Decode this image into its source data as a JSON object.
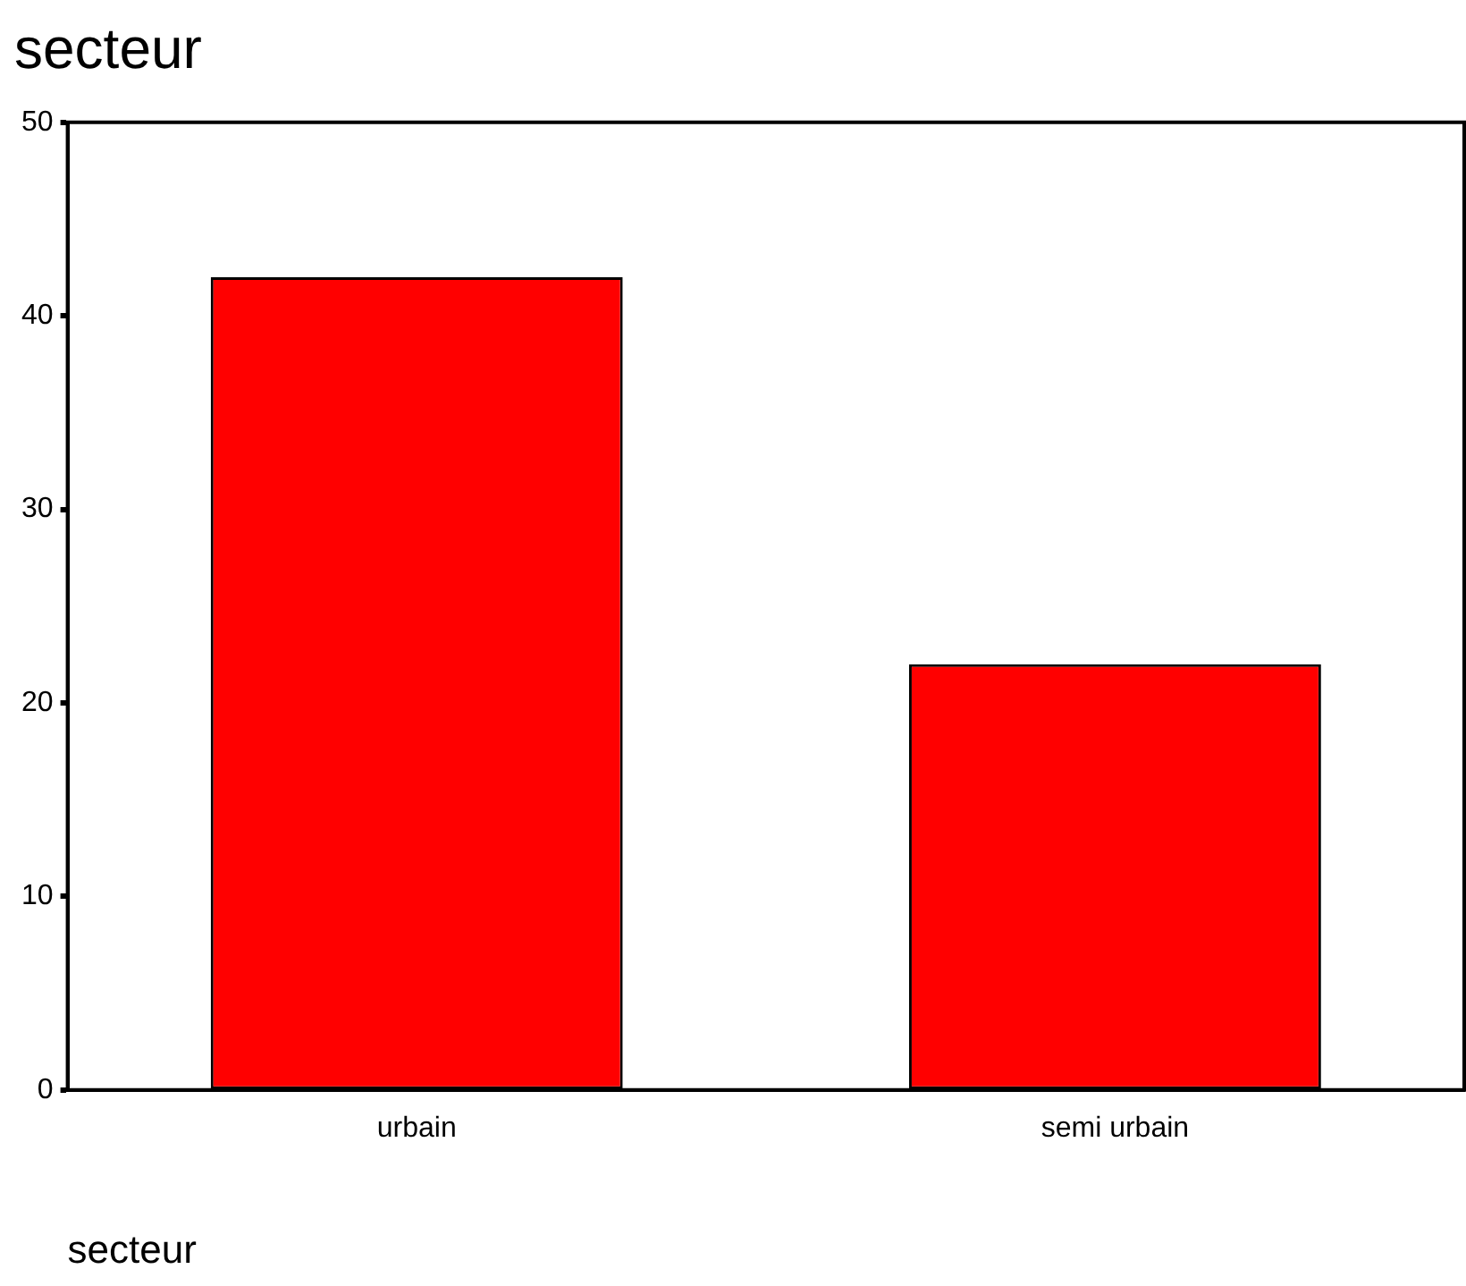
{
  "chart_data": {
    "type": "bar",
    "title": "secteur",
    "xlabel": "secteur",
    "categories": [
      "urbain",
      "semi urbain"
    ],
    "values": [
      42,
      22
    ],
    "color": "#ff0000",
    "ylim": [
      0,
      50
    ],
    "yticks": [
      0,
      10,
      20,
      30,
      40,
      50
    ],
    "grid": false,
    "legend": false
  }
}
